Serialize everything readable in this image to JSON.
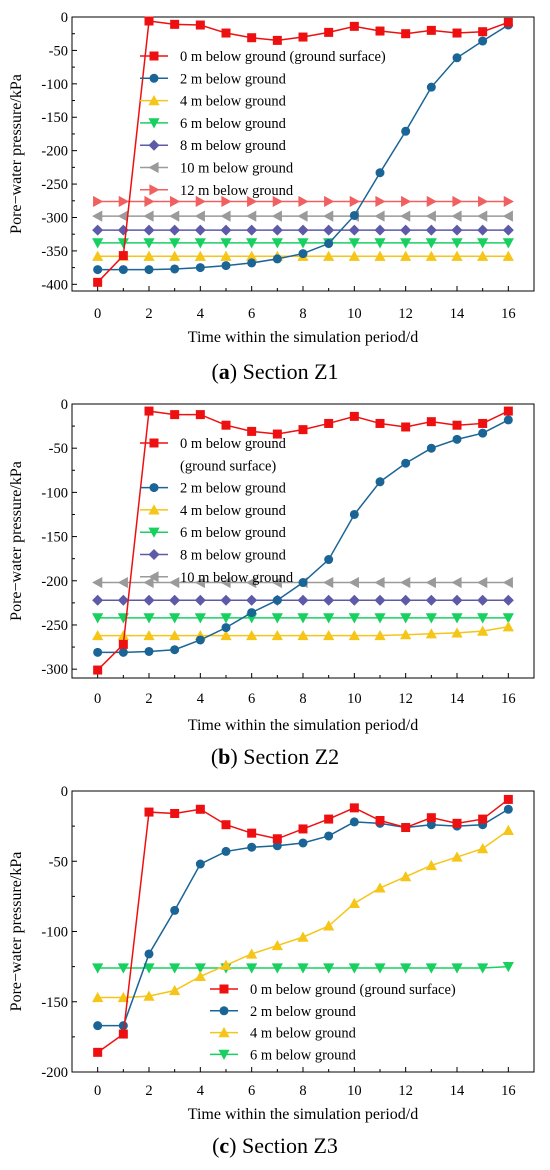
{
  "colors": {
    "depth0": "#ee1010",
    "depth2": "#1a6496",
    "depth4": "#f5c518",
    "depth6": "#18d060",
    "depth8": "#5d5aa8",
    "depth10": "#9a9a9a",
    "depth12": "#f06060"
  },
  "chart_data": [
    {
      "type": "line",
      "caption_letter": "a",
      "caption_rest": " Section Z1",
      "xlabel": "Time within the simulation period/d",
      "ylabel": "Pore−water pressure/kPa",
      "xlim": [
        -1,
        17
      ],
      "ylim": [
        -410,
        0
      ],
      "xticks": [
        0,
        2,
        4,
        6,
        8,
        10,
        12,
        14,
        16
      ],
      "yticks": [
        0,
        -50,
        -100,
        -150,
        -200,
        -250,
        -300,
        -350,
        -400
      ],
      "x": [
        0,
        1,
        2,
        3,
        4,
        5,
        6,
        7,
        8,
        9,
        10,
        11,
        12,
        13,
        14,
        15,
        16
      ],
      "series": [
        {
          "name": "0 m below ground (ground surface)",
          "marker": "square",
          "color_key": "depth0",
          "values": [
            -397,
            -357,
            -6,
            -11,
            -12,
            -24,
            -31,
            -35,
            -30,
            -23,
            -14,
            -21,
            -25,
            -20,
            -24,
            -22,
            -8
          ]
        },
        {
          "name": "2 m below ground",
          "marker": "circle",
          "color_key": "depth2",
          "values": [
            -378,
            -378,
            -378,
            -377,
            -375,
            -372,
            -368,
            -362,
            -354,
            -339,
            -297,
            -233,
            -171,
            -105,
            -61,
            -36,
            -12
          ]
        },
        {
          "name": "4 m below ground",
          "marker": "triangle-up",
          "color_key": "depth4",
          "values": [
            -358,
            -358,
            -358,
            -358,
            -358,
            -358,
            -358,
            -358,
            -358,
            -358,
            -358,
            -358,
            -358,
            -358,
            -358,
            -358,
            -358
          ]
        },
        {
          "name": "6 m below ground",
          "marker": "triangle-down",
          "color_key": "depth6",
          "values": [
            -338,
            -338,
            -338,
            -338,
            -338,
            -338,
            -338,
            -338,
            -338,
            -338,
            -338,
            -338,
            -338,
            -338,
            -338,
            -338,
            -338
          ]
        },
        {
          "name": "8 m below ground",
          "marker": "diamond",
          "color_key": "depth8",
          "values": [
            -319,
            -319,
            -319,
            -319,
            -319,
            -319,
            -319,
            -319,
            -319,
            -319,
            -319,
            -319,
            -319,
            -319,
            -319,
            -319,
            -319
          ]
        },
        {
          "name": "10 m below ground",
          "marker": "triangle-left",
          "color_key": "depth10",
          "values": [
            -298,
            -298,
            -298,
            -298,
            -298,
            -298,
            -298,
            -298,
            -298,
            -298,
            -298,
            -298,
            -298,
            -298,
            -298,
            -298,
            -298
          ]
        },
        {
          "name": "12 m below ground",
          "marker": "triangle-right",
          "color_key": "depth12",
          "values": [
            -276,
            -276,
            -276,
            -276,
            -276,
            -276,
            -276,
            -276,
            -276,
            -276,
            -276,
            -276,
            -276,
            -276,
            -276,
            -276,
            -276
          ]
        }
      ],
      "legend": [
        [
          "0 m below ground (ground surface)"
        ],
        [
          "2 m below ground"
        ],
        [
          "4 m below ground"
        ],
        [
          "6 m below ground"
        ],
        [
          "8 m below ground"
        ],
        [
          "10 m below ground"
        ],
        [
          "12 m below ground"
        ]
      ]
    },
    {
      "type": "line",
      "caption_letter": "b",
      "caption_rest": " Section Z2",
      "xlabel": "Time within the simulation period/d",
      "ylabel": "Pore−water pressure/kPa",
      "xlim": [
        -1,
        17
      ],
      "ylim": [
        -310,
        0
      ],
      "xticks": [
        0,
        2,
        4,
        6,
        8,
        10,
        12,
        14,
        16
      ],
      "yticks": [
        0,
        -50,
        -100,
        -150,
        -200,
        -250,
        -300
      ],
      "x": [
        0,
        1,
        2,
        3,
        4,
        5,
        6,
        7,
        8,
        9,
        10,
        11,
        12,
        13,
        14,
        15,
        16
      ],
      "series": [
        {
          "name": "0 m below ground (ground surface)",
          "marker": "square",
          "color_key": "depth0",
          "values": [
            -301,
            -272,
            -8,
            -12,
            -12,
            -24,
            -31,
            -34,
            -29,
            -22,
            -14,
            -22,
            -26,
            -20,
            -24,
            -22,
            -8
          ]
        },
        {
          "name": "2 m below ground",
          "marker": "circle",
          "color_key": "depth2",
          "values": [
            -281,
            -281,
            -280,
            -278,
            -267,
            -253,
            -236,
            -222,
            -202,
            -176,
            -125,
            -88,
            -67,
            -50,
            -40,
            -33,
            -18
          ]
        },
        {
          "name": "4 m below ground",
          "marker": "triangle-up",
          "color_key": "depth4",
          "values": [
            -262,
            -262,
            -262,
            -262,
            -262,
            -262,
            -262,
            -262,
            -262,
            -262,
            -262,
            -262,
            -261,
            -260,
            -259,
            -257,
            -252
          ]
        },
        {
          "name": "6 m below ground",
          "marker": "triangle-down",
          "color_key": "depth6",
          "values": [
            -242,
            -242,
            -242,
            -242,
            -242,
            -242,
            -242,
            -242,
            -242,
            -242,
            -242,
            -242,
            -242,
            -242,
            -242,
            -242,
            -242
          ]
        },
        {
          "name": "8 m below ground",
          "marker": "diamond",
          "color_key": "depth8",
          "values": [
            -222,
            -222,
            -222,
            -222,
            -222,
            -222,
            -222,
            -222,
            -222,
            -222,
            -222,
            -222,
            -222,
            -222,
            -222,
            -222,
            -222
          ]
        },
        {
          "name": "10 m below ground",
          "marker": "triangle-left",
          "color_key": "depth10",
          "values": [
            -202,
            -202,
            -202,
            -202,
            -202,
            -202,
            -202,
            -202,
            -202,
            -202,
            -202,
            -202,
            -202,
            -202,
            -202,
            -202,
            -202
          ]
        }
      ],
      "legend": [
        [
          "0 m below ground",
          "(ground surface)"
        ],
        [
          "2 m below ground"
        ],
        [
          "4 m below ground"
        ],
        [
          "6 m below ground"
        ],
        [
          "8 m below ground"
        ],
        [
          "10 m below ground"
        ]
      ]
    },
    {
      "type": "line",
      "caption_letter": "c",
      "caption_rest": " Section Z3",
      "xlabel": "Time within the simulation period/d",
      "ylabel": "Pore−water pressure/kPa",
      "xlim": [
        -1,
        17
      ],
      "ylim": [
        -200,
        0
      ],
      "xticks": [
        0,
        2,
        4,
        6,
        8,
        10,
        12,
        14,
        16
      ],
      "yticks": [
        0,
        -50,
        -100,
        -150,
        -200
      ],
      "x": [
        0,
        1,
        2,
        3,
        4,
        5,
        6,
        7,
        8,
        9,
        10,
        11,
        12,
        13,
        14,
        15,
        16
      ],
      "series": [
        {
          "name": "0 m below ground (ground surface)",
          "marker": "square",
          "color_key": "depth0",
          "values": [
            -186,
            -173,
            -15,
            -16,
            -13,
            -24,
            -30,
            -34,
            -27,
            -20,
            -12,
            -21,
            -26,
            -19,
            -23,
            -20,
            -6
          ]
        },
        {
          "name": "2 m below ground",
          "marker": "circle",
          "color_key": "depth2",
          "values": [
            -167,
            -167,
            -116,
            -85,
            -52,
            -43,
            -40,
            -39,
            -37,
            -32,
            -22,
            -23,
            -26,
            -24,
            -25,
            -24,
            -13
          ]
        },
        {
          "name": "4 m below ground",
          "marker": "triangle-up",
          "color_key": "depth4",
          "values": [
            -147,
            -147,
            -146,
            -142,
            -132,
            -124,
            -116,
            -110,
            -104,
            -96,
            -80,
            -69,
            -61,
            -53,
            -47,
            -41,
            -28
          ]
        },
        {
          "name": "6 m below ground",
          "marker": "triangle-down",
          "color_key": "depth6",
          "values": [
            -126,
            -126,
            -126,
            -126,
            -126,
            -126,
            -126,
            -126,
            -126,
            -126,
            -126,
            -126,
            -126,
            -126,
            -126,
            -126,
            -125
          ]
        }
      ],
      "legend": [
        [
          "0 m below ground (ground surface)"
        ],
        [
          "2 m below ground"
        ],
        [
          "4 m below ground"
        ],
        [
          "6 m below ground"
        ]
      ]
    }
  ]
}
